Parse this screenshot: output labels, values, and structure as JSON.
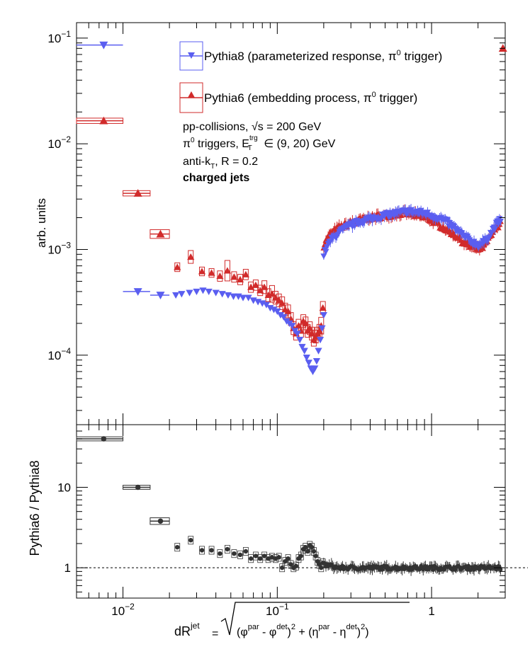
{
  "colors": {
    "pythia8": "#5a5ef0",
    "pythia6": "#d12b2b",
    "ratio": "#333333",
    "axis": "#000000"
  },
  "chart_data": [
    {
      "type": "scatter",
      "xscale": "log",
      "yscale": "log",
      "xlim": [
        0.005,
        3.0
      ],
      "ylim": [
        2.2e-05,
        0.14
      ],
      "ylabel": "arb. units",
      "yticks": [
        {
          "value": 0.1,
          "label": "10",
          "exp": "−1"
        },
        {
          "value": 0.01,
          "label": "10",
          "exp": "−2"
        },
        {
          "value": 0.001,
          "label": "10",
          "exp": "−3"
        },
        {
          "value": 0.0001,
          "label": "10",
          "exp": "−4"
        }
      ],
      "legend": {
        "position": "top-right",
        "entries": [
          {
            "series": "pythia8",
            "label": "Pythia8 (parameterized response, π",
            "sup": "0",
            "tail": " trigger)"
          },
          {
            "series": "pythia6",
            "label": "Pythia6 (embedding process, π",
            "sup": "0",
            "tail": " trigger)"
          }
        ]
      },
      "annotations": {
        "collisions": "pp-collisions, ",
        "sqrt_s": "√s",
        "energy": " = 200 GeV",
        "trig_pre": "π",
        "trig_sup0": "0",
        "trig_mid": " triggers, E",
        "trig_sup": "trg",
        "trig_sub": "T",
        "trig_range": " ∈ (9, 20) GeV",
        "algo_pre": "anti-k",
        "algo_sub": "T",
        "algo_post": ", R = 0.2",
        "jets": "charged jets"
      },
      "series": [
        {
          "key": "pythia8",
          "name": "Pythia8 (parameterized response, π0 trigger)",
          "marker": "triangle-down",
          "binned": [
            {
              "x": 0.0075,
              "xlo": 0.005,
              "xhi": 0.01,
              "y": 0.086
            },
            {
              "x": 0.0125,
              "xlo": 0.01,
              "xhi": 0.015,
              "y": 0.0004
            },
            {
              "x": 0.0175,
              "xlo": 0.015,
              "xhi": 0.02,
              "y": 0.00037
            }
          ],
          "points": [
            {
              "x": 0.022,
              "y": 0.00037
            },
            {
              "x": 0.024,
              "y": 0.00038
            },
            {
              "x": 0.027,
              "y": 0.00039
            },
            {
              "x": 0.03,
              "y": 0.0004
            },
            {
              "x": 0.033,
              "y": 0.00041
            },
            {
              "x": 0.036,
              "y": 0.0004
            },
            {
              "x": 0.04,
              "y": 0.00039
            },
            {
              "x": 0.044,
              "y": 0.00038
            },
            {
              "x": 0.048,
              "y": 0.00037
            },
            {
              "x": 0.052,
              "y": 0.00036
            },
            {
              "x": 0.056,
              "y": 0.00036
            },
            {
              "x": 0.06,
              "y": 0.00035
            },
            {
              "x": 0.065,
              "y": 0.00035
            },
            {
              "x": 0.07,
              "y": 0.00033
            },
            {
              "x": 0.075,
              "y": 0.00032
            },
            {
              "x": 0.08,
              "y": 0.00031
            },
            {
              "x": 0.085,
              "y": 0.0003
            },
            {
              "x": 0.09,
              "y": 0.00028
            },
            {
              "x": 0.095,
              "y": 0.00027
            },
            {
              "x": 0.1,
              "y": 0.00026
            },
            {
              "x": 0.105,
              "y": 0.00024
            },
            {
              "x": 0.11,
              "y": 0.00023
            },
            {
              "x": 0.115,
              "y": 0.00021
            },
            {
              "x": 0.12,
              "y": 0.0002
            },
            {
              "x": 0.125,
              "y": 0.00019
            },
            {
              "x": 0.13,
              "y": 0.00017
            },
            {
              "x": 0.135,
              "y": 0.00016
            },
            {
              "x": 0.14,
              "y": 0.00014
            },
            {
              "x": 0.145,
              "y": 0.00012
            },
            {
              "x": 0.15,
              "y": 0.00011
            },
            {
              "x": 0.155,
              "y": 9.5e-05
            },
            {
              "x": 0.16,
              "y": 8.5e-05
            },
            {
              "x": 0.165,
              "y": 7.5e-05
            },
            {
              "x": 0.17,
              "y": 7e-05
            },
            {
              "x": 0.175,
              "y": 7.5e-05
            },
            {
              "x": 0.18,
              "y": 8.8e-05
            },
            {
              "x": 0.185,
              "y": 0.00011
            },
            {
              "x": 0.19,
              "y": 0.00014
            },
            {
              "x": 0.195,
              "y": 0.00018
            },
            {
              "x": 0.2,
              "y": 0.00024
            }
          ],
          "continuum": [
            [
              0.2,
              0.0009
            ],
            [
              0.22,
              0.0012
            ],
            [
              0.25,
              0.00145
            ],
            [
              0.3,
              0.0017
            ],
            [
              0.35,
              0.00185
            ],
            [
              0.4,
              0.00195
            ],
            [
              0.5,
              0.0021
            ],
            [
              0.6,
              0.0022
            ],
            [
              0.7,
              0.0023
            ],
            [
              0.8,
              0.00225
            ],
            [
              0.9,
              0.0022
            ],
            [
              1.0,
              0.0021
            ],
            [
              1.2,
              0.0019
            ],
            [
              1.4,
              0.0016
            ],
            [
              1.6,
              0.00135
            ],
            [
              1.8,
              0.0012
            ],
            [
              2.0,
              0.0011
            ],
            [
              2.2,
              0.00118
            ],
            [
              2.4,
              0.0014
            ],
            [
              2.6,
              0.0017
            ],
            [
              2.8,
              0.0019
            ]
          ]
        },
        {
          "key": "pythia6",
          "name": "Pythia6 (embedding process, π0 trigger)",
          "marker": "triangle-up",
          "binned": [
            {
              "x": 0.0075,
              "xlo": 0.005,
              "xhi": 0.01,
              "y": 0.0165,
              "sys": 0.06
            },
            {
              "x": 0.0125,
              "xlo": 0.01,
              "xhi": 0.015,
              "y": 0.0034,
              "sys": 0.06
            },
            {
              "x": 0.0175,
              "xlo": 0.015,
              "xhi": 0.02,
              "y": 0.0014,
              "sys": 0.1
            }
          ],
          "points": [
            {
              "x": 0.0225,
              "y": 0.00068,
              "sys": 0.1
            },
            {
              "x": 0.0275,
              "y": 0.00085,
              "sys": 0.15
            },
            {
              "x": 0.0325,
              "y": 0.00062,
              "sys": 0.1
            },
            {
              "x": 0.0375,
              "y": 0.0006,
              "sys": 0.1
            },
            {
              "x": 0.0425,
              "y": 0.00056,
              "sys": 0.12
            },
            {
              "x": 0.0475,
              "y": 0.00063,
              "sys": 0.25
            },
            {
              "x": 0.0525,
              "y": 0.00055,
              "sys": 0.12
            },
            {
              "x": 0.0575,
              "y": 0.00052,
              "sys": 0.12
            },
            {
              "x": 0.0625,
              "y": 0.00058,
              "sys": 0.12
            },
            {
              "x": 0.0675,
              "y": 0.00044,
              "sys": 0.12
            },
            {
              "x": 0.0725,
              "y": 0.00046,
              "sys": 0.12
            },
            {
              "x": 0.0775,
              "y": 0.00041,
              "sys": 0.12
            },
            {
              "x": 0.0825,
              "y": 0.00044,
              "sys": 0.15
            },
            {
              "x": 0.0875,
              "y": 0.00037,
              "sys": 0.15
            },
            {
              "x": 0.0925,
              "y": 0.00038,
              "sys": 0.2
            },
            {
              "x": 0.0975,
              "y": 0.00035,
              "sys": 0.15
            },
            {
              "x": 0.1025,
              "y": 0.00033,
              "sys": 0.15
            },
            {
              "x": 0.1075,
              "y": 0.00031,
              "sys": 0.15
            },
            {
              "x": 0.1125,
              "y": 0.00027,
              "sys": 0.15
            },
            {
              "x": 0.1175,
              "y": 0.00026,
              "sys": 0.15
            },
            {
              "x": 0.1225,
              "y": 0.00022,
              "sys": 0.15
            },
            {
              "x": 0.1275,
              "y": 0.00018,
              "sys": 0.15
            },
            {
              "x": 0.1325,
              "y": 0.00016,
              "sys": 0.15
            },
            {
              "x": 0.1375,
              "y": 0.00019,
              "sys": 0.15
            },
            {
              "x": 0.1425,
              "y": 0.00017,
              "sys": 0.15
            },
            {
              "x": 0.1475,
              "y": 0.00021,
              "sys": 0.15
            },
            {
              "x": 0.1525,
              "y": 0.0002,
              "sys": 0.15
            },
            {
              "x": 0.1575,
              "y": 0.00017,
              "sys": 0.15
            },
            {
              "x": 0.1625,
              "y": 0.00018,
              "sys": 0.15
            },
            {
              "x": 0.1675,
              "y": 0.00016,
              "sys": 0.15
            },
            {
              "x": 0.1725,
              "y": 0.00014,
              "sys": 0.15
            },
            {
              "x": 0.1775,
              "y": 0.00015,
              "sys": 0.15
            },
            {
              "x": 0.1825,
              "y": 0.00016,
              "sys": 0.15
            },
            {
              "x": 0.1875,
              "y": 0.00017,
              "sys": 0.15
            },
            {
              "x": 0.1925,
              "y": 0.00019,
              "sys": 0.2
            },
            {
              "x": 0.1975,
              "y": 0.00028,
              "sys": 0.15
            }
          ],
          "continuum": [
            [
              0.2,
              0.0011
            ],
            [
              0.22,
              0.0014
            ],
            [
              0.25,
              0.0016
            ],
            [
              0.3,
              0.0018
            ],
            [
              0.35,
              0.0019
            ],
            [
              0.4,
              0.002
            ],
            [
              0.5,
              0.0021
            ],
            [
              0.6,
              0.0022
            ],
            [
              0.7,
              0.0022
            ],
            [
              0.8,
              0.0021
            ],
            [
              0.9,
              0.002
            ],
            [
              1.0,
              0.0019
            ],
            [
              1.2,
              0.0016
            ],
            [
              1.4,
              0.0014
            ],
            [
              1.6,
              0.00118
            ],
            [
              1.8,
              0.00105
            ],
            [
              2.0,
              0.001
            ],
            [
              2.2,
              0.00108
            ],
            [
              2.4,
              0.0013
            ],
            [
              2.6,
              0.0016
            ],
            [
              2.8,
              0.0018
            ]
          ],
          "extra": [
            {
              "x": 2.9,
              "y": 0.08
            }
          ]
        }
      ]
    },
    {
      "type": "scatter",
      "xscale": "log",
      "yscale": "log",
      "xlim": [
        0.005,
        3.0
      ],
      "ylim": [
        0.42,
        60
      ],
      "ylabel": "Pythia6 / Pythia8",
      "xlabel": "dR",
      "xlabel_sup": "jet",
      "xlabel_formula": "= √((φ^par - φ^det)^2 + (η^par - η^det)^2)",
      "xticks": [
        {
          "value": 0.01,
          "label": "10",
          "exp": "−2"
        },
        {
          "value": 0.1,
          "label": "10",
          "exp": "−1"
        },
        {
          "value": 1,
          "label": "1",
          "exp": ""
        }
      ],
      "yticks": [
        {
          "value": 10,
          "label": "10"
        },
        {
          "value": 1,
          "label": "1"
        }
      ],
      "reference_line": 1,
      "series": [
        {
          "key": "ratio",
          "name": "Pythia6 / Pythia8",
          "marker": "circle",
          "binned": [
            {
              "x": 0.0075,
              "xlo": 0.005,
              "xhi": 0.01,
              "y": 40,
              "sys": 0.06
            },
            {
              "x": 0.0125,
              "xlo": 0.01,
              "xhi": 0.015,
              "y": 10,
              "sys": 0.06
            },
            {
              "x": 0.0175,
              "xlo": 0.015,
              "xhi": 0.02,
              "y": 3.8,
              "sys": 0.1
            }
          ],
          "points": [
            {
              "x": 0.0225,
              "y": 1.8
            },
            {
              "x": 0.0275,
              "y": 2.2
            },
            {
              "x": 0.0325,
              "y": 1.65
            },
            {
              "x": 0.0375,
              "y": 1.65
            },
            {
              "x": 0.0425,
              "y": 1.5
            },
            {
              "x": 0.0475,
              "y": 1.7
            },
            {
              "x": 0.0525,
              "y": 1.5
            },
            {
              "x": 0.0575,
              "y": 1.45
            },
            {
              "x": 0.0625,
              "y": 1.6
            },
            {
              "x": 0.0675,
              "y": 1.3
            },
            {
              "x": 0.0725,
              "y": 1.4
            },
            {
              "x": 0.0775,
              "y": 1.3
            },
            {
              "x": 0.0825,
              "y": 1.4
            },
            {
              "x": 0.0875,
              "y": 1.3
            },
            {
              "x": 0.0925,
              "y": 1.35
            },
            {
              "x": 0.0975,
              "y": 1.3
            },
            {
              "x": 0.1025,
              "y": 1.35
            },
            {
              "x": 0.1075,
              "y": 1.0
            },
            {
              "x": 0.1125,
              "y": 1.2
            },
            {
              "x": 0.1175,
              "y": 1.3
            },
            {
              "x": 0.1225,
              "y": 1.1
            },
            {
              "x": 0.1275,
              "y": 1.0
            },
            {
              "x": 0.1325,
              "y": 1.05
            },
            {
              "x": 0.1375,
              "y": 1.3
            },
            {
              "x": 0.1425,
              "y": 1.4
            },
            {
              "x": 0.1475,
              "y": 1.7
            },
            {
              "x": 0.1525,
              "y": 1.8
            },
            {
              "x": 0.1575,
              "y": 1.6
            },
            {
              "x": 0.1625,
              "y": 1.9
            },
            {
              "x": 0.1675,
              "y": 1.8
            },
            {
              "x": 0.1725,
              "y": 1.6
            },
            {
              "x": 0.1775,
              "y": 1.4
            },
            {
              "x": 0.1825,
              "y": 1.2
            },
            {
              "x": 0.1875,
              "y": 1.1
            },
            {
              "x": 0.1925,
              "y": 1.0
            },
            {
              "x": 0.1975,
              "y": 1.15
            }
          ],
          "continuum": [
            [
              0.2,
              1.1
            ],
            [
              0.25,
              1.0
            ],
            [
              0.3,
              1.0
            ],
            [
              0.5,
              1.0
            ],
            [
              1.0,
              1.0
            ],
            [
              2.0,
              1.0
            ],
            [
              2.8,
              1.0
            ]
          ]
        }
      ]
    }
  ]
}
